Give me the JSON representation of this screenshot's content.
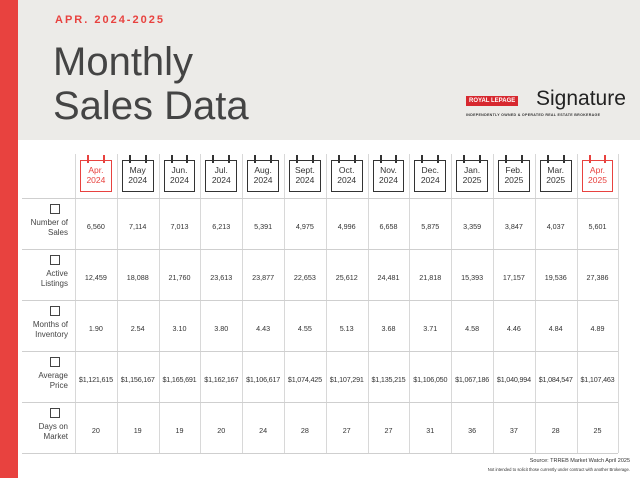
{
  "header": {
    "period": "APR. 2024-2025",
    "title_line1": "Monthly",
    "title_line2": "Sales Data"
  },
  "logo": {
    "brand": "ROYAL LEPAGE",
    "name": "Signature",
    "tagline": "INDEPENDENTLY OWNED & OPERATED REAL ESTATE BROKERAGE"
  },
  "table": {
    "columns": [
      {
        "month": "Apr.",
        "year": "2024"
      },
      {
        "month": "May",
        "year": "2024"
      },
      {
        "month": "Jun.",
        "year": "2024"
      },
      {
        "month": "Jul.",
        "year": "2024"
      },
      {
        "month": "Aug.",
        "year": "2024"
      },
      {
        "month": "Sept.",
        "year": "2024"
      },
      {
        "month": "Oct.",
        "year": "2024"
      },
      {
        "month": "Nov.",
        "year": "2024"
      },
      {
        "month": "Dec.",
        "year": "2024"
      },
      {
        "month": "Jan.",
        "year": "2025"
      },
      {
        "month": "Feb.",
        "year": "2025"
      },
      {
        "month": "Mar.",
        "year": "2025"
      },
      {
        "month": "Apr.",
        "year": "2025"
      }
    ],
    "rows": [
      {
        "label": "Number of Sales",
        "values": [
          "6,560",
          "7,114",
          "7,013",
          "6,213",
          "5,391",
          "4,975",
          "4,996",
          "6,658",
          "5,875",
          "3,359",
          "3,847",
          "4,037",
          "5,601"
        ]
      },
      {
        "label": "Active Listings",
        "values": [
          "12,459",
          "18,088",
          "21,760",
          "23,613",
          "23,877",
          "22,653",
          "25,612",
          "24,481",
          "21,818",
          "15,393",
          "17,157",
          "19,536",
          "27,386"
        ]
      },
      {
        "label": "Months of Inventory",
        "values": [
          "1.90",
          "2.54",
          "3.10",
          "3.80",
          "4.43",
          "4.55",
          "5.13",
          "3.68",
          "3.71",
          "4.58",
          "4.46",
          "4.84",
          "4.89"
        ]
      },
      {
        "label": "Average Price",
        "values": [
          "$1,121,615",
          "$1,156,167",
          "$1,165,691",
          "$1,162,167",
          "$1,106,617",
          "$1,074,425",
          "$1,107,291",
          "$1,135,215",
          "$1,106,050",
          "$1,067,186",
          "$1,040,994",
          "$1,084,547",
          "$1,107,463"
        ]
      },
      {
        "label": "Days on Market",
        "values": [
          "20",
          "19",
          "19",
          "20",
          "24",
          "28",
          "27",
          "27",
          "31",
          "36",
          "37",
          "28",
          "25"
        ]
      }
    ]
  },
  "footer": {
    "source": "Source: TRREB Market Watch April 2025",
    "disclaimer": "Not intended to solicit those currently under contract with another Brokerage."
  }
}
